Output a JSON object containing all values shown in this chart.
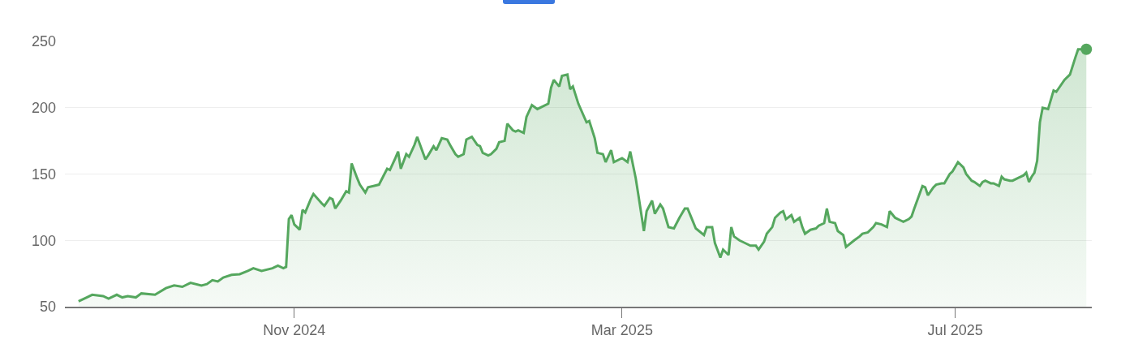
{
  "chart_data": {
    "type": "area",
    "x": [
      "2024-08-14",
      "2024-08-17",
      "2024-08-19",
      "2024-08-23",
      "2024-08-25",
      "2024-08-28",
      "2024-08-30",
      "2024-09-01",
      "2024-09-04",
      "2024-09-06",
      "2024-09-11",
      "2024-09-15",
      "2024-09-18",
      "2024-09-21",
      "2024-09-24",
      "2024-09-28",
      "2024-09-30",
      "2024-10-02",
      "2024-10-04",
      "2024-10-06",
      "2024-10-09",
      "2024-10-12",
      "2024-10-15",
      "2024-10-17",
      "2024-10-20",
      "2024-10-24",
      "2024-10-26",
      "2024-10-28",
      "2024-10-29",
      "2024-10-30",
      "2024-10-31",
      "2024-11-01",
      "2024-11-03",
      "2024-11-04",
      "2024-11-05",
      "2024-11-07",
      "2024-11-08",
      "2024-11-11",
      "2024-11-12",
      "2024-11-14",
      "2024-11-15",
      "2024-11-16",
      "2024-11-18",
      "2024-11-20",
      "2024-11-21",
      "2024-11-22",
      "2024-11-24",
      "2024-11-25",
      "2024-11-27",
      "2024-11-28",
      "2024-11-30",
      "2024-12-02",
      "2024-12-04",
      "2024-12-05",
      "2024-12-06",
      "2024-12-08",
      "2024-12-09",
      "2024-12-10",
      "2024-12-12",
      "2024-12-13",
      "2024-12-15",
      "2024-12-16",
      "2024-12-19",
      "2024-12-20",
      "2024-12-22",
      "2024-12-23",
      "2024-12-25",
      "2024-12-27",
      "2024-12-28",
      "2024-12-30",
      "2024-12-31",
      "2025-01-02",
      "2025-01-03",
      "2025-01-05",
      "2025-01-07",
      "2025-01-08",
      "2025-01-09",
      "2025-01-11",
      "2025-01-12",
      "2025-01-14",
      "2025-01-15",
      "2025-01-17",
      "2025-01-18",
      "2025-01-20",
      "2025-01-21",
      "2025-01-22",
      "2025-01-24",
      "2025-01-25",
      "2025-01-27",
      "2025-01-29",
      "2025-01-31",
      "2025-02-02",
      "2025-02-03",
      "2025-02-04",
      "2025-02-06",
      "2025-02-07",
      "2025-02-09",
      "2025-02-10",
      "2025-02-11",
      "2025-02-13",
      "2025-02-16",
      "2025-02-17",
      "2025-02-19",
      "2025-02-20",
      "2025-02-22",
      "2025-02-23",
      "2025-02-25",
      "2025-02-26",
      "2025-02-28",
      "2025-03-01",
      "2025-03-03",
      "2025-03-04",
      "2025-03-06",
      "2025-03-07",
      "2025-03-09",
      "2025-03-10",
      "2025-03-12",
      "2025-03-13",
      "2025-03-15",
      "2025-03-16",
      "2025-03-18",
      "2025-03-20",
      "2025-03-22",
      "2025-03-24",
      "2025-03-25",
      "2025-03-26",
      "2025-03-28",
      "2025-03-31",
      "2025-04-01",
      "2025-04-03",
      "2025-04-04",
      "2025-04-06",
      "2025-04-07",
      "2025-04-09",
      "2025-04-10",
      "2025-04-11",
      "2025-04-13",
      "2025-04-15",
      "2025-04-17",
      "2025-04-19",
      "2025-04-20",
      "2025-04-22",
      "2025-04-23",
      "2025-04-25",
      "2025-04-26",
      "2025-04-28",
      "2025-04-29",
      "2025-04-30",
      "2025-05-02",
      "2025-05-03",
      "2025-05-05",
      "2025-05-06",
      "2025-05-07",
      "2025-05-09",
      "2025-05-11",
      "2025-05-12",
      "2025-05-14",
      "2025-05-15",
      "2025-05-16",
      "2025-05-18",
      "2025-05-19",
      "2025-05-21",
      "2025-05-22",
      "2025-05-25",
      "2025-05-27",
      "2025-05-28",
      "2025-05-30",
      "2025-06-01",
      "2025-06-02",
      "2025-06-04",
      "2025-06-06",
      "2025-06-07",
      "2025-06-09",
      "2025-06-11",
      "2025-06-12",
      "2025-06-14",
      "2025-06-15",
      "2025-06-16",
      "2025-06-19",
      "2025-06-20",
      "2025-06-21",
      "2025-06-23",
      "2025-06-24",
      "2025-06-26",
      "2025-06-27",
      "2025-06-29",
      "2025-06-30",
      "2025-07-02",
      "2025-07-04",
      "2025-07-05",
      "2025-07-07",
      "2025-07-08",
      "2025-07-10",
      "2025-07-11",
      "2025-07-12",
      "2025-07-14",
      "2025-07-15",
      "2025-07-17",
      "2025-07-18",
      "2025-07-19",
      "2025-07-21",
      "2025-07-22",
      "2025-07-24",
      "2025-07-26",
      "2025-07-27",
      "2025-07-28",
      "2025-07-29",
      "2025-07-30",
      "2025-07-31",
      "2025-08-01",
      "2025-08-02",
      "2025-08-04",
      "2025-08-06",
      "2025-08-07",
      "2025-08-08",
      "2025-08-10",
      "2025-08-12",
      "2025-08-14",
      "2025-08-15",
      "2025-08-18"
    ],
    "series": [
      {
        "color": "#55a75e",
        "values": [
          54,
          57,
          59,
          58,
          56,
          59,
          57,
          58,
          57,
          60,
          59,
          64,
          66,
          65,
          68,
          66,
          67,
          70,
          69,
          72,
          74,
          74.5,
          77,
          79,
          77,
          79,
          81,
          79,
          80,
          116,
          119,
          112,
          108,
          123,
          121,
          131,
          135,
          128,
          126,
          132,
          131,
          124,
          130,
          137,
          136,
          158,
          147,
          142,
          136,
          140,
          141,
          142,
          150,
          154,
          153,
          162,
          167,
          154,
          165,
          163,
          172,
          178,
          161,
          164,
          171,
          168,
          177,
          176,
          172,
          165,
          163,
          165,
          176,
          178,
          172,
          171,
          166,
          164,
          165,
          169,
          174,
          175,
          188,
          183,
          182,
          183,
          181,
          193,
          202,
          199,
          201,
          203,
          215,
          221,
          216,
          224,
          225,
          214,
          216,
          203,
          189,
          190,
          177,
          166,
          165,
          159,
          168,
          159,
          161,
          162,
          159,
          167,
          147,
          134,
          107,
          122,
          130,
          120,
          127,
          124,
          110,
          109,
          117,
          124,
          124,
          119,
          109,
          104,
          110,
          110,
          98,
          87,
          93,
          89,
          110,
          103,
          100,
          98,
          96,
          96,
          93,
          99,
          105,
          110,
          117,
          121,
          122,
          116,
          119,
          114,
          117,
          110,
          105,
          108,
          109,
          111,
          113,
          124,
          114,
          113,
          107,
          104,
          95,
          100,
          103,
          105,
          106,
          110,
          113,
          112,
          110,
          122,
          117,
          115,
          114,
          116,
          118,
          124,
          141,
          140,
          134,
          140,
          142,
          143,
          143,
          150,
          152,
          159,
          155,
          150,
          145,
          144,
          141,
          144,
          145,
          143,
          143,
          141,
          148,
          146,
          145,
          145,
          147,
          149,
          151,
          144,
          148,
          151,
          160,
          189,
          200,
          199,
          213,
          212,
          215,
          221,
          225,
          238,
          244,
          244
        ]
      },
      {
        "type": "scatter",
        "color": "#55a75e",
        "marker": "circle",
        "x": [
          "2025-08-18"
        ],
        "values": [
          244
        ]
      }
    ],
    "xlim": [
      "2024-08-09",
      "2025-08-20"
    ],
    "xticks": [
      {
        "value": "2024-11-01",
        "label": "Nov 2024"
      },
      {
        "value": "2025-03-01",
        "label": "Mar 2025"
      },
      {
        "value": "2025-07-01",
        "label": "Jul 2025"
      }
    ],
    "ylim": [
      50,
      250
    ],
    "yticks": [
      50,
      100,
      150,
      200,
      250
    ],
    "grid": "y"
  }
}
